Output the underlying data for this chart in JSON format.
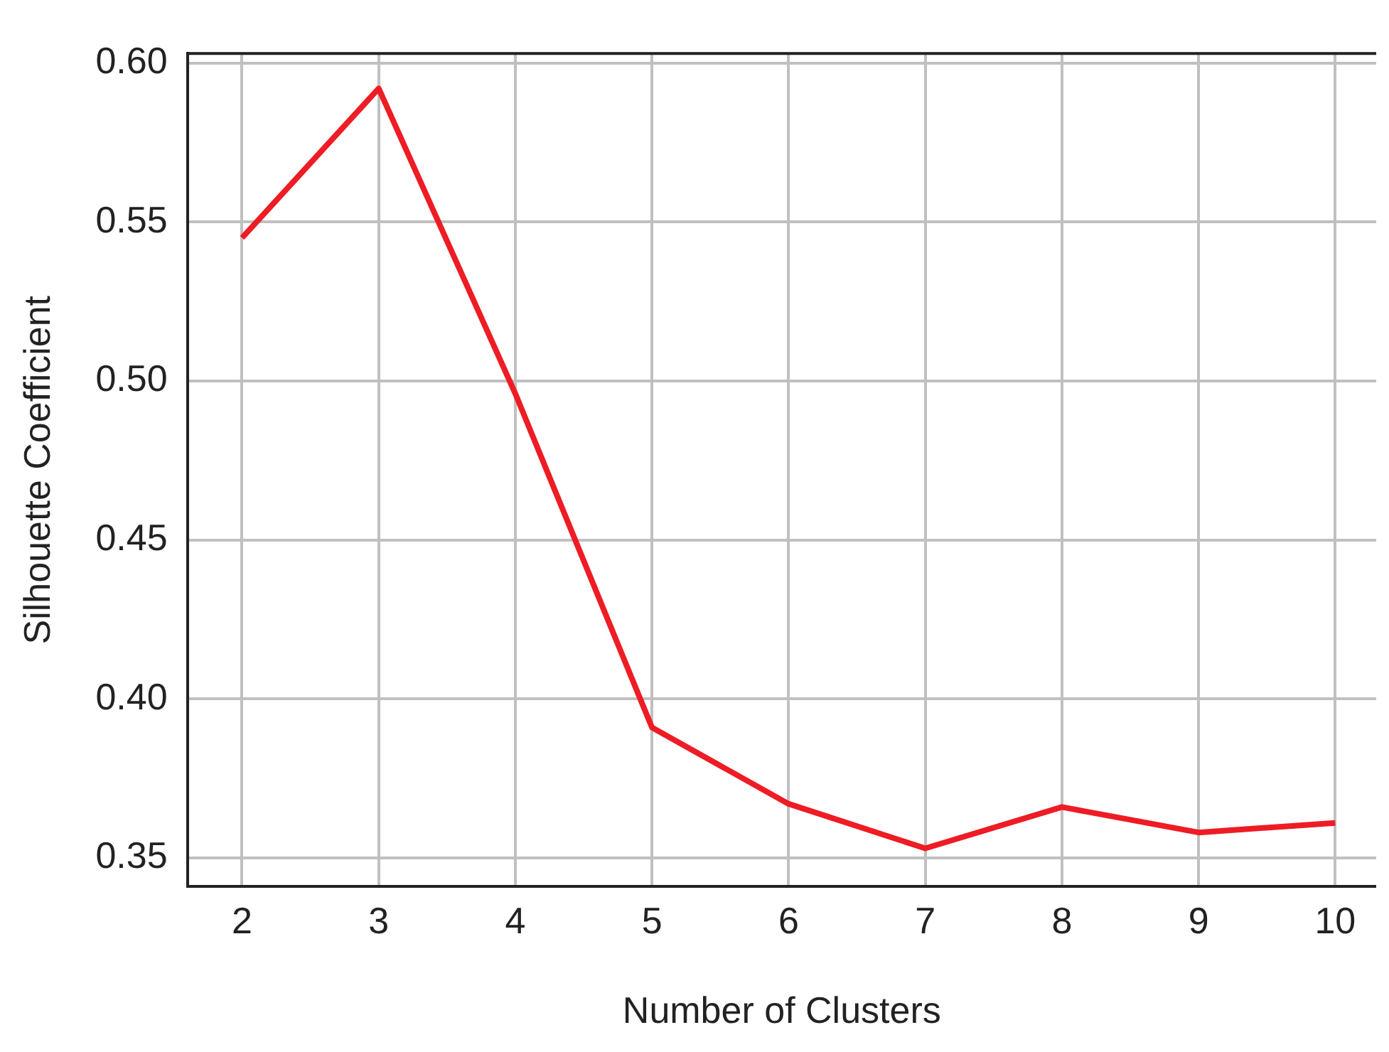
{
  "chart_data": {
    "type": "line",
    "xlabel": "Number of Clusters",
    "ylabel": "Silhouette Coefficient",
    "x": [
      2,
      3,
      4,
      5,
      6,
      7,
      8,
      9,
      10
    ],
    "series": [
      {
        "color": "#ee1c25",
        "values": [
          0.545,
          0.592,
          0.496,
          0.391,
          0.367,
          0.353,
          0.366,
          0.358,
          0.361
        ]
      }
    ],
    "xlim": [
      1.6,
      10.3
    ],
    "xticks": [
      2,
      3,
      4,
      5,
      6,
      7,
      8,
      9,
      10
    ],
    "ylim": [
      0.341,
      0.603
    ],
    "yticks": [
      {
        "value": 0.35,
        "label": "0.35"
      },
      {
        "value": 0.4,
        "label": "0.40"
      },
      {
        "value": 0.45,
        "label": "0.45"
      },
      {
        "value": 0.5,
        "label": "0.50"
      },
      {
        "value": 0.55,
        "label": "0.55"
      },
      {
        "value": 0.6,
        "label": "0.60"
      }
    ],
    "grid": true,
    "legend": false,
    "marker": "none",
    "line_style": "solid"
  }
}
